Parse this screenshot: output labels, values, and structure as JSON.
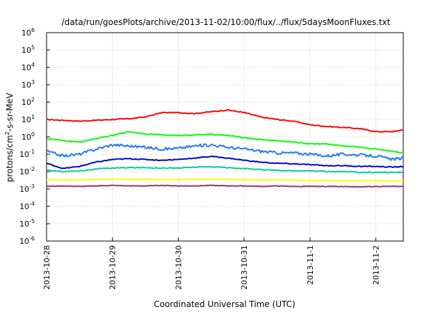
{
  "chart_data": {
    "type": "line",
    "title": "/data/run/goesPlots/archive/2013-11-02/10:00/flux/../flux/5daysMoonFluxes.txt",
    "xlabel": "Coordinated Universal Time (UTC)",
    "ylabel": {
      "base": "protons/cm",
      "sup": "2",
      "rest": "-s-sr-MeV"
    },
    "yscale": "log",
    "ylim": [
      -6,
      6
    ],
    "y_ticks": [
      {
        "base": "10",
        "exp": "-6"
      },
      {
        "base": "10",
        "exp": "-5"
      },
      {
        "base": "10",
        "exp": "-4"
      },
      {
        "base": "10",
        "exp": "-3"
      },
      {
        "base": "10",
        "exp": "-2"
      },
      {
        "base": "10",
        "exp": "-1"
      },
      {
        "base": "10",
        "exp": "0"
      },
      {
        "base": "10",
        "exp": "1"
      },
      {
        "base": "10",
        "exp": "2"
      },
      {
        "base": "10",
        "exp": "3"
      },
      {
        "base": "10",
        "exp": "4"
      },
      {
        "base": "10",
        "exp": "5"
      },
      {
        "base": "10",
        "exp": "6"
      }
    ],
    "xlim": [
      "2013-10-28",
      "2013-11-02 10:00"
    ],
    "x_ticks": [
      "2013-10-28",
      "2013-10-29",
      "2013-10-30",
      "2013-10-31",
      "2013-11-1",
      "2013-11-2"
    ],
    "grid": true,
    "legend": "none",
    "x": [
      "2013-10-28 00:00",
      "2013-10-28 06:00",
      "2013-10-28 12:00",
      "2013-10-28 18:00",
      "2013-10-29 00:00",
      "2013-10-29 06:00",
      "2013-10-29 12:00",
      "2013-10-29 18:00",
      "2013-10-30 00:00",
      "2013-10-30 06:00",
      "2013-10-30 12:00",
      "2013-10-30 18:00",
      "2013-10-31 00:00",
      "2013-10-31 06:00",
      "2013-10-31 12:00",
      "2013-10-31 18:00",
      "2013-11-01 00:00",
      "2013-11-01 06:00",
      "2013-11-01 12:00",
      "2013-11-01 18:00",
      "2013-11-02 00:00",
      "2013-11-02 06:00",
      "2013-11-02 10:00"
    ],
    "series": [
      {
        "color": "#ff0000",
        "values": [
          10,
          9,
          8,
          9,
          10,
          11,
          14,
          25,
          25,
          22,
          28,
          35,
          25,
          14,
          10,
          8,
          5,
          4,
          3.5,
          3,
          2,
          2,
          2.5
        ]
      },
      {
        "color": "#00ff00",
        "values": [
          0.8,
          0.6,
          0.5,
          0.8,
          1.2,
          2.0,
          1.5,
          1.3,
          1.2,
          1.3,
          1.4,
          1.2,
          0.9,
          0.7,
          0.6,
          0.5,
          0.4,
          0.4,
          0.3,
          0.25,
          0.2,
          0.15,
          0.12
        ]
      },
      {
        "color": "#1f77ff",
        "values": [
          0.15,
          0.08,
          0.1,
          0.2,
          0.35,
          0.3,
          0.25,
          0.2,
          0.22,
          0.3,
          0.35,
          0.25,
          0.2,
          0.15,
          0.12,
          0.12,
          0.1,
          0.08,
          0.1,
          0.09,
          0.08,
          0.05,
          0.06
        ]
      },
      {
        "color": "#0000cc",
        "values": [
          0.03,
          0.015,
          0.02,
          0.035,
          0.05,
          0.055,
          0.05,
          0.045,
          0.05,
          0.06,
          0.075,
          0.06,
          0.045,
          0.035,
          0.03,
          0.028,
          0.025,
          0.022,
          0.022,
          0.02,
          0.02,
          0.018,
          0.02
        ]
      },
      {
        "color": "#00cc99",
        "values": [
          0.012,
          0.01,
          0.011,
          0.014,
          0.016,
          0.017,
          0.017,
          0.016,
          0.016,
          0.018,
          0.019,
          0.017,
          0.015,
          0.013,
          0.012,
          0.011,
          0.011,
          0.01,
          0.01,
          0.009,
          0.009,
          0.009,
          0.009
        ]
      },
      {
        "color": "#ffff00",
        "values": [
          0.0035,
          0.0033,
          0.0034,
          0.0035,
          0.0036,
          0.0035,
          0.0035,
          0.0034,
          0.0035,
          0.0036,
          0.0036,
          0.0035,
          0.0034,
          0.0033,
          0.0033,
          0.0032,
          0.0031,
          0.0031,
          0.003,
          0.003,
          0.003,
          0.0029,
          0.0029
        ]
      },
      {
        "color": "#993366",
        "values": [
          0.0014,
          0.0015,
          0.0014,
          0.0015,
          0.0016,
          0.0015,
          0.0015,
          0.0016,
          0.0015,
          0.0015,
          0.0016,
          0.0015,
          0.0015,
          0.0014,
          0.0015,
          0.0014,
          0.0014,
          0.0014,
          0.0014,
          0.0013,
          0.0014,
          0.0014,
          0.0014
        ]
      }
    ]
  }
}
